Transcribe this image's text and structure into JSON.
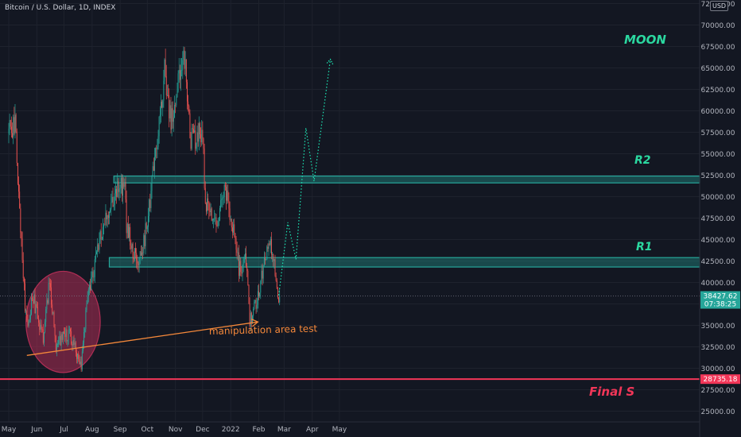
{
  "header": {
    "symbol_title": "Bitcoin / U.S. Dollar, 1D, INDEX",
    "currency": "USD"
  },
  "colors": {
    "background": "#131722",
    "grid": "#1e222d",
    "axis_text": "#b2b5be",
    "up": "#26a69a",
    "down": "#ef5350",
    "zone": "#26a69a",
    "support_line": "#f23658",
    "ellipse": "#b02e55",
    "arrow": "#f5883a",
    "projection": "#1de9b6"
  },
  "chart_data": {
    "type": "candlestick",
    "x_tick_labels": [
      "May",
      "Jun",
      "Jul",
      "Aug",
      "Sep",
      "Oct",
      "Nov",
      "Dec",
      "2022",
      "Feb",
      "Mar",
      "Apr",
      "May"
    ],
    "y_tick_labels": [
      "72500.00",
      "70000.00",
      "67500.00",
      "65000.00",
      "62500.00",
      "60000.00",
      "57500.00",
      "55000.00",
      "52500.00",
      "50000.00",
      "47500.00",
      "45000.00",
      "42500.00",
      "40000.00",
      "37500.00",
      "35000.00",
      "32500.00",
      "30000.00",
      "27500.00",
      "25000.00"
    ],
    "ylim": [
      22800,
      73500
    ],
    "last_price": {
      "price": 38427.62,
      "label": "38427.62",
      "countdown": "07:38:25"
    },
    "support": {
      "price": 28735.18,
      "label": "28735.18",
      "name": "Final S"
    },
    "zones": [
      {
        "name": "R2",
        "low": 51600,
        "high": 52400,
        "from": "2021-08-25",
        "to": "2022-04-30"
      },
      {
        "name": "R1",
        "low": 41800,
        "high": 42900,
        "from": "2021-08-20",
        "to": "2022-04-30"
      }
    ],
    "ellipse_label": "manipulation area test",
    "ellipse": {
      "from": "2021-05-20",
      "to": "2021-08-10",
      "low": 29500,
      "high": 41300
    },
    "arrow": {
      "from": {
        "date": "2021-05-21",
        "price": 31500
      },
      "to": {
        "date": "2022-01-31",
        "price": 35400
      }
    },
    "projection_label": "MOON",
    "projection": [
      {
        "date": "2022-02-23",
        "price": 38500
      },
      {
        "date": "2022-03-05",
        "price": 47000
      },
      {
        "date": "2022-03-14",
        "price": 42700
      },
      {
        "date": "2022-03-25",
        "price": 58000
      },
      {
        "date": "2022-04-03",
        "price": 51800
      },
      {
        "date": "2022-04-21",
        "price": 66000
      }
    ],
    "anchors": [
      {
        "date": "2021-05-01",
        "price": 57800
      },
      {
        "date": "2021-05-08",
        "price": 58400
      },
      {
        "date": "2021-05-12",
        "price": 50500
      },
      {
        "date": "2021-05-19",
        "price": 37000
      },
      {
        "date": "2021-05-23",
        "price": 34800
      },
      {
        "date": "2021-05-27",
        "price": 38500
      },
      {
        "date": "2021-06-08",
        "price": 33500
      },
      {
        "date": "2021-06-15",
        "price": 40000
      },
      {
        "date": "2021-06-22",
        "price": 32500
      },
      {
        "date": "2021-07-01",
        "price": 34000
      },
      {
        "date": "2021-07-08",
        "price": 33800
      },
      {
        "date": "2021-07-20",
        "price": 30000
      },
      {
        "date": "2021-07-26",
        "price": 37500
      },
      {
        "date": "2021-08-14",
        "price": 47000
      },
      {
        "date": "2021-08-23",
        "price": 49800
      },
      {
        "date": "2021-09-06",
        "price": 51800
      },
      {
        "date": "2021-09-08",
        "price": 46500
      },
      {
        "date": "2021-09-21",
        "price": 41500
      },
      {
        "date": "2021-10-01",
        "price": 47000
      },
      {
        "date": "2021-10-20",
        "price": 64500
      },
      {
        "date": "2021-10-27",
        "price": 58500
      },
      {
        "date": "2021-11-10",
        "price": 67500
      },
      {
        "date": "2021-11-18",
        "price": 56500
      },
      {
        "date": "2021-12-01",
        "price": 57500
      },
      {
        "date": "2021-12-04",
        "price": 49500
      },
      {
        "date": "2021-12-14",
        "price": 46500
      },
      {
        "date": "2021-12-27",
        "price": 50800
      },
      {
        "date": "2022-01-10",
        "price": 41800
      },
      {
        "date": "2022-01-18",
        "price": 42500
      },
      {
        "date": "2022-01-22",
        "price": 35300
      },
      {
        "date": "2022-02-01",
        "price": 38500
      },
      {
        "date": "2022-02-10",
        "price": 44200
      },
      {
        "date": "2022-02-16",
        "price": 44000
      },
      {
        "date": "2022-02-23",
        "price": 37500
      },
      {
        "date": "2022-02-24",
        "price": 38400
      }
    ]
  }
}
